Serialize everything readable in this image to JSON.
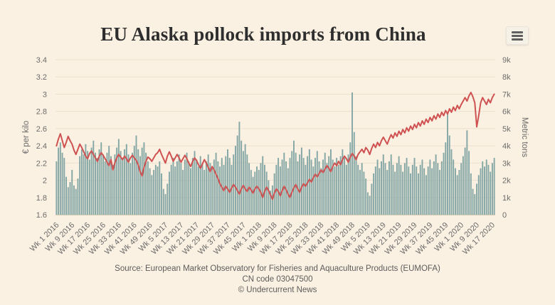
{
  "title": "EU Alaska pollock imports from China",
  "menu": {
    "icon": "hamburger-menu-icon"
  },
  "colors": {
    "background": "#fbf1e2",
    "grid": "#ece0cd",
    "axis_line": "#d9ccb6",
    "bar": "#84a7a6",
    "line": "#cf5252",
    "tick_text": "#6b6b6b",
    "title_text": "#2e2e2e",
    "footer_text": "#5c5c5c",
    "menu_icon": "#5f5f5f"
  },
  "chart_data": {
    "type": "bar",
    "combo": "weekly bars (imports) + line (price)",
    "grid": true,
    "legend": "none",
    "x_tick_every": 8,
    "x_tick_labels": [
      "Wk 1 2016",
      "Wk 9 2016",
      "Wk 17 2016",
      "Wk 25 2016",
      "Wk 33 2016",
      "Wk 41 2016",
      "Wk 49 2016",
      "Wk 5 2017",
      "Wk 13 2017",
      "Wk 21 2017",
      "Wk 29 2017",
      "Wk 37 2017",
      "Wk 45 2017",
      "Wk 1 2018",
      "Wk 9 2018",
      "Wk 17 2018",
      "Wk 25 2018",
      "Wk 33 2018",
      "Wk 41 2018",
      "Wk 49 2018",
      "Wk 5 2019",
      "Wk 13 2019",
      "Wk 21 2019",
      "Wk 29 2019",
      "Wk 37 2019",
      "Wk 45 2019",
      "Wk 1 2020",
      "Wk 9 2020",
      "Wk 17 2020"
    ],
    "left_axis": {
      "title": "€ per kilo",
      "min": 1.6,
      "max": 3.4,
      "ticks": [
        "3.4",
        "3.2",
        "3",
        "2.8",
        "2.6",
        "2.4",
        "2.2",
        "2",
        "1.8",
        "1.6"
      ]
    },
    "right_axis": {
      "title": "Metric tons",
      "min": 0,
      "max": 9000,
      "ticks": [
        "9k",
        "8k",
        "7k",
        "6k",
        "5k",
        "4k",
        "3k",
        "2k",
        "1k",
        "0"
      ]
    },
    "series": [
      {
        "name": "Metric tons",
        "type": "bar",
        "axis": "right",
        "values": [
          3100,
          3900,
          4200,
          3600,
          3300,
          2200,
          1600,
          1900,
          2600,
          1700,
          1500,
          2100,
          3400,
          3800,
          3500,
          4100,
          3700,
          3200,
          3900,
          4300,
          3600,
          3300,
          3800,
          4200,
          3500,
          3100,
          3600,
          4000,
          3400,
          2900,
          3500,
          3900,
          4400,
          3700,
          3300,
          3800,
          4100,
          3500,
          3000,
          3600,
          4000,
          4600,
          3800,
          3400,
          3900,
          4200,
          3600,
          3100,
          2700,
          2300,
          2600,
          2900,
          2800,
          3100,
          2400,
          1500,
          1200,
          1800,
          2500,
          2900,
          3300,
          2800,
          3100,
          3500,
          3000,
          2600,
          3200,
          3600,
          3100,
          2700,
          3300,
          3700,
          3200,
          2800,
          3400,
          3000,
          2600,
          3100,
          3500,
          3000,
          2700,
          3200,
          3600,
          3100,
          2800,
          3300,
          2900,
          3400,
          3800,
          3300,
          2900,
          3500,
          4000,
          4600,
          5400,
          4300,
          3700,
          4100,
          3500,
          3000,
          2600,
          2200,
          2500,
          2800,
          2600,
          3000,
          3400,
          2900,
          2500,
          2000,
          1400,
          1700,
          2400,
          2900,
          3300,
          2800,
          3200,
          3600,
          3100,
          2700,
          3300,
          3700,
          4300,
          3600,
          3100,
          3500,
          3900,
          3300,
          2900,
          3400,
          3800,
          3200,
          2800,
          3300,
          3700,
          3100,
          2700,
          3200,
          3600,
          3000,
          3400,
          3800,
          3200,
          2800,
          3300,
          2900,
          3400,
          3800,
          3300,
          2900,
          3500,
          4200,
          7100,
          4800,
          3400,
          2900,
          2600,
          3000,
          2500,
          2100,
          1300,
          1100,
          1800,
          2400,
          2800,
          3200,
          2700,
          3100,
          3500,
          3000,
          2600,
          3100,
          3500,
          2900,
          2500,
          3000,
          3400,
          2900,
          2500,
          3000,
          3300,
          2800,
          2400,
          2900,
          3300,
          2800,
          2400,
          2900,
          3200,
          2700,
          2300,
          2800,
          3200,
          2700,
          3100,
          3500,
          3000,
          2600,
          3100,
          3600,
          4200,
          5900,
          4600,
          3800,
          3200,
          2700,
          2300,
          2600,
          3000,
          3400,
          3900,
          4900,
          3700,
          2400,
          1500,
          1200,
          1800,
          2300,
          2700,
          3100,
          2800,
          3200,
          2900,
          2500,
          3000,
          3300
        ]
      },
      {
        "name": "€ per kilo",
        "type": "line",
        "axis": "left",
        "values": [
          2.4,
          2.48,
          2.54,
          2.46,
          2.38,
          2.44,
          2.51,
          2.46,
          2.42,
          2.35,
          2.3,
          2.36,
          2.42,
          2.38,
          2.33,
          2.28,
          2.25,
          2.31,
          2.34,
          2.3,
          2.26,
          2.22,
          2.28,
          2.32,
          2.29,
          2.25,
          2.21,
          2.17,
          2.24,
          2.12,
          2.2,
          2.26,
          2.3,
          2.27,
          2.24,
          2.28,
          2.25,
          2.21,
          2.26,
          2.29,
          2.26,
          2.23,
          2.18,
          2.1,
          2.05,
          2.15,
          2.22,
          2.27,
          2.25,
          2.22,
          2.26,
          2.3,
          2.32,
          2.36,
          2.3,
          2.25,
          2.2,
          2.28,
          2.33,
          2.28,
          2.22,
          2.26,
          2.3,
          2.26,
          2.21,
          2.25,
          2.29,
          2.25,
          2.2,
          2.16,
          2.22,
          2.26,
          2.23,
          2.18,
          2.14,
          2.19,
          2.24,
          2.2,
          2.15,
          2.1,
          2.16,
          2.12,
          2.07,
          2.02,
          1.96,
          1.92,
          1.88,
          1.93,
          1.9,
          1.86,
          1.91,
          1.95,
          1.92,
          1.88,
          1.84,
          1.9,
          1.94,
          1.9,
          1.87,
          1.92,
          1.89,
          1.85,
          1.9,
          1.93,
          1.9,
          1.86,
          1.8,
          1.87,
          1.92,
          1.88,
          1.83,
          1.78,
          1.85,
          1.9,
          1.87,
          1.82,
          1.88,
          1.93,
          1.89,
          1.84,
          1.8,
          1.86,
          1.91,
          1.95,
          1.9,
          1.86,
          1.92,
          1.96,
          1.93,
          1.97,
          2.01,
          1.98,
          2.03,
          2.07,
          2.04,
          2.08,
          2.12,
          2.09,
          2.13,
          2.17,
          2.14,
          2.1,
          2.16,
          2.2,
          2.17,
          2.22,
          2.18,
          2.24,
          2.28,
          2.25,
          2.21,
          2.27,
          2.31,
          2.28,
          2.24,
          2.3,
          2.33,
          2.36,
          2.32,
          2.38,
          2.35,
          2.3,
          2.37,
          2.42,
          2.38,
          2.44,
          2.4,
          2.46,
          2.5,
          2.46,
          2.42,
          2.48,
          2.53,
          2.49,
          2.55,
          2.51,
          2.57,
          2.53,
          2.59,
          2.55,
          2.61,
          2.57,
          2.63,
          2.59,
          2.65,
          2.61,
          2.67,
          2.63,
          2.69,
          2.65,
          2.71,
          2.67,
          2.73,
          2.69,
          2.75,
          2.71,
          2.77,
          2.73,
          2.79,
          2.75,
          2.81,
          2.77,
          2.83,
          2.79,
          2.85,
          2.81,
          2.87,
          2.83,
          2.88,
          2.92,
          2.96,
          2.92,
          2.98,
          3.02,
          2.97,
          2.9,
          2.62,
          2.75,
          2.9,
          2.96,
          2.92,
          2.88,
          2.94,
          2.9,
          2.96,
          3.0
        ]
      }
    ]
  },
  "footer": {
    "source": "Source: European Market Observatory for Fisheries and Aquaculture Products (EUMOFA)",
    "cn_code": "CN code 03047500",
    "copyright": "© Undercurrent News"
  }
}
